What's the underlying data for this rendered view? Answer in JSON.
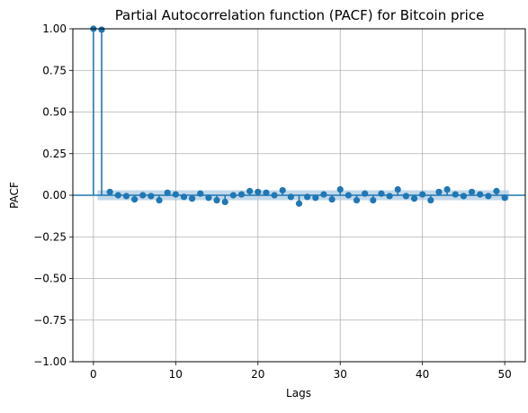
{
  "chart_data": {
    "type": "scatter",
    "style": "stem",
    "title": "Partial Autocorrelation function (PACF) for Bitcoin price",
    "xlabel": "Lags",
    "ylabel": "PACF",
    "xlim": [
      -2.5,
      52.5
    ],
    "ylim": [
      -1.0,
      1.0
    ],
    "xticks": [
      0,
      10,
      20,
      30,
      40,
      50
    ],
    "xtick_labels": [
      "0",
      "10",
      "20",
      "30",
      "40",
      "50"
    ],
    "yticks": [
      -1.0,
      -0.75,
      -0.5,
      -0.25,
      0.0,
      0.25,
      0.5,
      0.75,
      1.0
    ],
    "ytick_labels": [
      "−1.00",
      "−0.75",
      "−0.50",
      "−0.25",
      "0.00",
      "0.25",
      "0.50",
      "0.75",
      "1.00"
    ],
    "grid": true,
    "confidence_band": [
      -0.03,
      0.03
    ],
    "colors": {
      "series": "#1f77b4",
      "band": "#a9c7e0",
      "grid": "#b0b0b0"
    },
    "x": [
      0,
      1,
      2,
      3,
      4,
      5,
      6,
      7,
      8,
      9,
      10,
      11,
      12,
      13,
      14,
      15,
      16,
      17,
      18,
      19,
      20,
      21,
      22,
      23,
      24,
      25,
      26,
      27,
      28,
      29,
      30,
      31,
      32,
      33,
      34,
      35,
      36,
      37,
      38,
      39,
      40,
      41,
      42,
      43,
      44,
      45,
      46,
      47,
      48,
      49,
      50
    ],
    "values": [
      1.0,
      0.995,
      0.02,
      0.0,
      -0.005,
      -0.025,
      0.0,
      -0.005,
      -0.03,
      0.015,
      0.005,
      -0.01,
      -0.02,
      0.01,
      -0.015,
      -0.03,
      -0.04,
      0.0,
      0.005,
      0.025,
      0.02,
      0.015,
      0.0,
      0.03,
      -0.01,
      -0.05,
      -0.01,
      -0.015,
      0.005,
      -0.025,
      0.035,
      0.0,
      -0.03,
      0.01,
      -0.03,
      0.01,
      -0.005,
      0.035,
      -0.005,
      -0.02,
      0.005,
      -0.03,
      0.02,
      0.035,
      0.005,
      -0.005,
      0.02,
      0.005,
      -0.005,
      0.025,
      -0.015
    ]
  }
}
